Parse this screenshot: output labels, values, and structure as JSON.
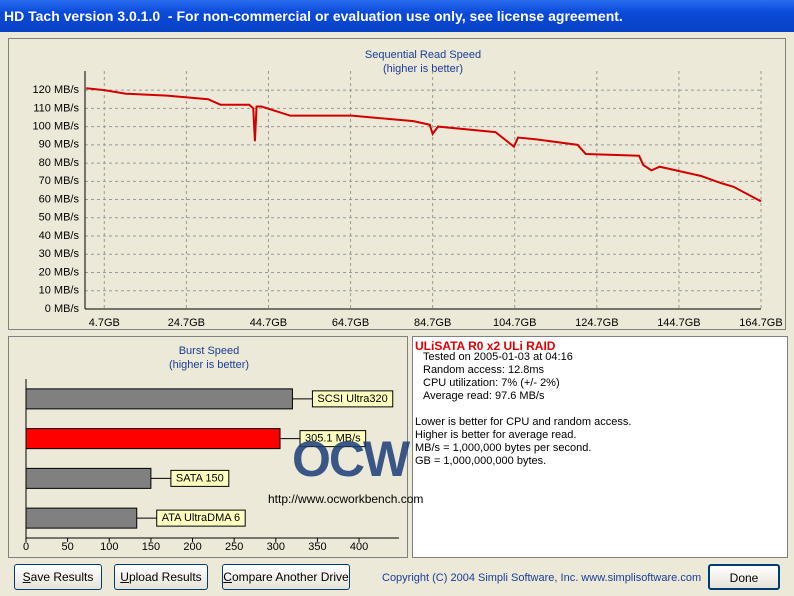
{
  "window": {
    "title": "HD Tach version 3.0.1.0  - For non-commercial or evaluation use only, see license agreement."
  },
  "chart_data": [
    {
      "type": "line",
      "title": "Sequential Read Speed",
      "subtitle": "(higher is better)",
      "x": [
        0.3,
        4.7,
        10,
        20,
        30,
        33,
        40,
        41,
        41.4,
        41.8,
        43,
        50,
        65,
        70,
        80,
        84,
        84.7,
        86,
        100,
        104.5,
        105.5,
        110,
        120,
        122,
        135,
        136,
        138,
        140,
        150,
        155,
        158,
        164.7
      ],
      "series": [
        {
          "color": "#d00000",
          "values": [
            121,
            120,
            118,
            117,
            115,
            112,
            112,
            110,
            92,
            111,
            111,
            106,
            106,
            105,
            103,
            101,
            96,
            100,
            97,
            89,
            94,
            93,
            90,
            85,
            84,
            79,
            76,
            78,
            73,
            69,
            67,
            59
          ]
        }
      ],
      "xlim": [
        0,
        164.7
      ],
      "xticks": [
        {
          "value": 4.7,
          "label": "4.7GB"
        },
        {
          "value": 24.7,
          "label": "24.7GB"
        },
        {
          "value": 44.7,
          "label": "44.7GB"
        },
        {
          "value": 64.7,
          "label": "64.7GB"
        },
        {
          "value": 84.7,
          "label": "84.7GB"
        },
        {
          "value": 104.7,
          "label": "104.7GB"
        },
        {
          "value": 124.7,
          "label": "124.7GB"
        },
        {
          "value": 144.7,
          "label": "144.7GB"
        },
        {
          "value": 164.7,
          "label": "164.7GB"
        }
      ],
      "ylim": [
        0,
        125
      ],
      "yticks": [
        {
          "value": 0,
          "label": "0 MB/s"
        },
        {
          "value": 10,
          "label": "10 MB/s"
        },
        {
          "value": 20,
          "label": "20 MB/s"
        },
        {
          "value": 30,
          "label": "30 MB/s"
        },
        {
          "value": 40,
          "label": "40 MB/s"
        },
        {
          "value": 50,
          "label": "50 MB/s"
        },
        {
          "value": 60,
          "label": "60 MB/s"
        },
        {
          "value": 70,
          "label": "70 MB/s"
        },
        {
          "value": 80,
          "label": "80 MB/s"
        },
        {
          "value": 90,
          "label": "90 MB/s"
        },
        {
          "value": 100,
          "label": "100 MB/s"
        },
        {
          "value": 110,
          "label": "110 MB/s"
        },
        {
          "value": 120,
          "label": "120 MB/s"
        }
      ],
      "grid": true
    },
    {
      "type": "hbar",
      "title": "Burst Speed",
      "subtitle": "(higher is better)",
      "categories": [
        "SCSI Ultra320",
        null,
        "SATA 150",
        "ATA UltraDMA 6"
      ],
      "values": [
        320,
        305.1,
        150,
        133
      ],
      "value_labels": [
        null,
        "305.1 MB/s",
        null,
        null
      ],
      "colors": [
        "#808080",
        "#ff0000",
        "#808080",
        "#808080"
      ],
      "xlim": [
        0,
        448
      ],
      "xticks": [
        0,
        50,
        100,
        150,
        200,
        250,
        300,
        350,
        400
      ],
      "grid": false
    }
  ],
  "results": {
    "heading": "ULiSATA R0 x2 ULi RAID",
    "lines": [
      "Tested on 2005-01-03 at 04:16",
      "Random access: 12.8ms",
      "CPU utilization: 7% (+/- 2%)",
      "Average read: 97.6 MB/s"
    ],
    "notes": [
      "Lower is better for CPU and random access.",
      "Higher is better for average read.",
      "MB/s = 1,000,000 bytes per second.",
      "GB = 1,000,000,000 bytes."
    ]
  },
  "watermark": {
    "logo": "OCW",
    "url": "http://www.ocworkbench.com"
  },
  "buttons": [
    "Save Results",
    "Upload Results",
    "Compare Another Drive",
    "Done"
  ],
  "copyright": "Copyright (C) 2004 Simpli Software, Inc. www.simplisoftware.com"
}
